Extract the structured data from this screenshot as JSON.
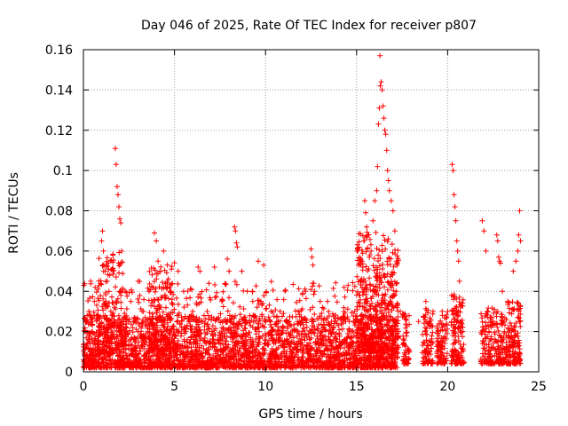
{
  "chart_data": {
    "type": "scatter",
    "title": "Day 046 of 2025, Rate Of TEC Index for receiver p807",
    "xlabel": "GPS time / hours",
    "ylabel": "ROTI / TECUs",
    "xlim": [
      0,
      25
    ],
    "ylim": [
      0,
      0.16
    ],
    "x_ticks": [
      "0",
      "5",
      "10",
      "15",
      "20",
      "25"
    ],
    "x_tick_values": [
      0,
      5,
      10,
      15,
      20,
      25
    ],
    "y_ticks": [
      "0",
      "0.02",
      "0.04",
      "0.06",
      "0.08",
      "0.1",
      "0.12",
      "0.14",
      "0.16"
    ],
    "y_tick_values": [
      0,
      0.02,
      0.04,
      0.06,
      0.08,
      0.1,
      0.12,
      0.14,
      0.16
    ],
    "grid": true,
    "marker": "+",
    "series": [
      {
        "name": "",
        "color": "#ff0000",
        "points": [
          [
            0.1,
            0.012
          ],
          [
            0.2,
            0.028
          ],
          [
            0.3,
            0.03
          ],
          [
            0.4,
            0.045
          ],
          [
            0.5,
            0.02
          ],
          [
            0.6,
            0.035
          ],
          [
            0.8,
            0.01
          ],
          [
            1.0,
            0.065
          ],
          [
            1.05,
            0.07
          ],
          [
            1.1,
            0.06
          ],
          [
            1.2,
            0.05
          ],
          [
            1.3,
            0.045
          ],
          [
            1.5,
            0.03
          ],
          [
            1.75,
            0.111
          ],
          [
            1.8,
            0.103
          ],
          [
            1.85,
            0.092
          ],
          [
            1.9,
            0.088
          ],
          [
            1.95,
            0.082
          ],
          [
            2.0,
            0.076
          ],
          [
            2.05,
            0.074
          ],
          [
            2.1,
            0.06
          ],
          [
            2.3,
            0.04
          ],
          [
            2.6,
            0.035
          ],
          [
            3.0,
            0.045
          ],
          [
            3.3,
            0.03
          ],
          [
            3.6,
            0.04
          ],
          [
            3.9,
            0.069
          ],
          [
            4.0,
            0.065
          ],
          [
            4.1,
            0.055
          ],
          [
            4.2,
            0.05
          ],
          [
            4.4,
            0.06
          ],
          [
            4.6,
            0.045
          ],
          [
            4.8,
            0.04
          ],
          [
            5.2,
            0.05
          ],
          [
            5.5,
            0.04
          ],
          [
            6.0,
            0.03
          ],
          [
            6.3,
            0.052
          ],
          [
            6.4,
            0.05
          ],
          [
            6.8,
            0.03
          ],
          [
            7.2,
            0.052
          ],
          [
            7.6,
            0.035
          ],
          [
            7.9,
            0.056
          ],
          [
            8.0,
            0.05
          ],
          [
            8.3,
            0.072
          ],
          [
            8.35,
            0.07
          ],
          [
            8.4,
            0.064
          ],
          [
            8.45,
            0.062
          ],
          [
            8.7,
            0.05
          ],
          [
            9.0,
            0.04
          ],
          [
            9.3,
            0.035
          ],
          [
            9.6,
            0.055
          ],
          [
            9.9,
            0.053
          ],
          [
            10.3,
            0.03
          ],
          [
            10.8,
            0.03
          ],
          [
            11.3,
            0.025
          ],
          [
            11.8,
            0.03
          ],
          [
            12.2,
            0.04
          ],
          [
            12.5,
            0.061
          ],
          [
            12.55,
            0.057
          ],
          [
            12.6,
            0.053
          ],
          [
            12.65,
            0.044
          ],
          [
            12.7,
            0.04
          ],
          [
            13.0,
            0.035
          ],
          [
            13.4,
            0.035
          ],
          [
            13.8,
            0.025
          ],
          [
            14.3,
            0.03
          ],
          [
            14.6,
            0.025
          ],
          [
            14.9,
            0.03
          ],
          [
            15.2,
            0.045
          ],
          [
            15.3,
            0.055
          ],
          [
            15.45,
            0.085
          ],
          [
            15.5,
            0.079
          ],
          [
            15.55,
            0.072
          ],
          [
            15.6,
            0.068
          ],
          [
            15.7,
            0.057
          ],
          [
            15.8,
            0.06
          ],
          [
            15.9,
            0.075
          ],
          [
            16.0,
            0.085
          ],
          [
            16.1,
            0.09
          ],
          [
            16.15,
            0.102
          ],
          [
            16.2,
            0.123
          ],
          [
            16.25,
            0.131
          ],
          [
            16.3,
            0.142
          ],
          [
            16.35,
            0.144
          ],
          [
            16.4,
            0.14
          ],
          [
            16.45,
            0.132
          ],
          [
            16.5,
            0.126
          ],
          [
            16.55,
            0.12
          ],
          [
            16.6,
            0.118
          ],
          [
            16.65,
            0.11
          ],
          [
            16.7,
            0.1
          ],
          [
            16.75,
            0.095
          ],
          [
            16.8,
            0.09
          ],
          [
            16.9,
            0.085
          ],
          [
            17.0,
            0.08
          ],
          [
            17.1,
            0.07
          ],
          [
            17.2,
            0.055
          ],
          [
            16.28,
            0.157
          ],
          [
            17.4,
            0.03
          ],
          [
            18.4,
            0.025
          ],
          [
            18.8,
            0.035
          ],
          [
            19.2,
            0.03
          ],
          [
            19.7,
            0.03
          ],
          [
            20.0,
            0.03
          ],
          [
            20.25,
            0.103
          ],
          [
            20.3,
            0.1
          ],
          [
            20.35,
            0.088
          ],
          [
            20.4,
            0.082
          ],
          [
            20.45,
            0.075
          ],
          [
            20.5,
            0.065
          ],
          [
            20.55,
            0.06
          ],
          [
            20.6,
            0.055
          ],
          [
            20.65,
            0.045
          ],
          [
            21.9,
            0.075
          ],
          [
            22.0,
            0.07
          ],
          [
            22.1,
            0.06
          ],
          [
            22.2,
            0.03
          ],
          [
            22.7,
            0.068
          ],
          [
            22.75,
            0.065
          ],
          [
            22.8,
            0.057
          ],
          [
            22.85,
            0.055
          ],
          [
            22.9,
            0.054
          ],
          [
            23.0,
            0.04
          ],
          [
            23.3,
            0.035
          ],
          [
            23.6,
            0.05
          ],
          [
            23.75,
            0.055
          ],
          [
            23.85,
            0.06
          ],
          [
            23.9,
            0.068
          ],
          [
            23.95,
            0.08
          ],
          [
            24.0,
            0.065
          ]
        ],
        "bands": [
          {
            "from": 0.0,
            "to": 17.3,
            "ymin": 0.002,
            "ymax": 0.028,
            "count": 2600
          },
          {
            "from": 0.0,
            "to": 17.3,
            "ymin": 0.002,
            "ymax": 0.045,
            "count": 700
          },
          {
            "from": 15.0,
            "to": 17.3,
            "ymin": 0.01,
            "ymax": 0.07,
            "count": 450
          },
          {
            "from": 0.8,
            "to": 2.2,
            "ymin": 0.01,
            "ymax": 0.06,
            "count": 160
          },
          {
            "from": 3.6,
            "to": 5.0,
            "ymin": 0.01,
            "ymax": 0.055,
            "count": 160
          },
          {
            "from": 17.5,
            "to": 17.9,
            "ymin": 0.004,
            "ymax": 0.03,
            "count": 60
          },
          {
            "from": 18.6,
            "to": 19.2,
            "ymin": 0.004,
            "ymax": 0.032,
            "count": 90
          },
          {
            "from": 19.4,
            "to": 20.0,
            "ymin": 0.004,
            "ymax": 0.03,
            "count": 90
          },
          {
            "from": 20.2,
            "to": 20.9,
            "ymin": 0.004,
            "ymax": 0.04,
            "count": 140
          },
          {
            "from": 21.8,
            "to": 22.6,
            "ymin": 0.004,
            "ymax": 0.032,
            "count": 110
          },
          {
            "from": 22.6,
            "to": 23.3,
            "ymin": 0.004,
            "ymax": 0.03,
            "count": 110
          },
          {
            "from": 23.3,
            "to": 24.0,
            "ymin": 0.004,
            "ymax": 0.035,
            "count": 140
          }
        ]
      }
    ]
  }
}
